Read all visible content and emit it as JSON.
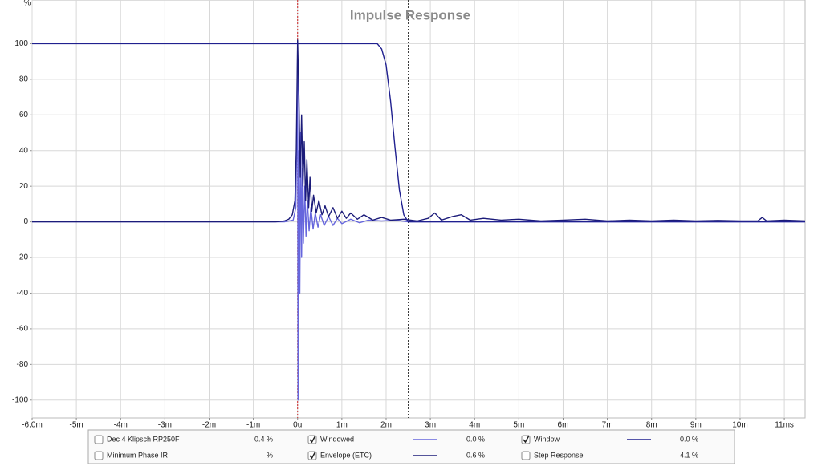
{
  "chart_data": {
    "type": "line",
    "title": "Impulse Response",
    "ylabel": "%",
    "xlim": [
      -6,
      11.47
    ],
    "ylim": [
      -110,
      120
    ],
    "xticks": [
      {
        "value": -6,
        "label": "-6.0m"
      },
      {
        "value": -5,
        "label": "-5m"
      },
      {
        "value": -4,
        "label": "-4m"
      },
      {
        "value": -3,
        "label": "-3m"
      },
      {
        "value": -2,
        "label": "-2m"
      },
      {
        "value": -1,
        "label": "-1m"
      },
      {
        "value": 0,
        "label": "0u"
      },
      {
        "value": 1,
        "label": "1m"
      },
      {
        "value": 2,
        "label": "2m"
      },
      {
        "value": 3,
        "label": "3m"
      },
      {
        "value": 4,
        "label": "4m"
      },
      {
        "value": 5,
        "label": "5m"
      },
      {
        "value": 6,
        "label": "6m"
      },
      {
        "value": 7,
        "label": "7m"
      },
      {
        "value": 8,
        "label": "8m"
      },
      {
        "value": 9,
        "label": "9m"
      },
      {
        "value": 10,
        "label": "10m"
      },
      {
        "value": 11,
        "label": "11ms"
      }
    ],
    "yticks": [
      -100,
      -80,
      -60,
      -40,
      -20,
      0,
      20,
      40,
      60,
      80,
      100
    ],
    "grid": true,
    "markers": [
      {
        "x": 0,
        "color": "#cc2222",
        "dash": "2,2"
      },
      {
        "x": 2.5,
        "color": "#333333",
        "dash": "2,2"
      }
    ],
    "series": [
      {
        "name": "Windowed",
        "color": "#6666dd",
        "readout": "0.0 %",
        "checked": true,
        "x": [
          -6,
          -0.3,
          -0.1,
          -0.04,
          -0.01,
          0,
          0.01,
          0.03,
          0.05,
          0.07,
          0.09,
          0.11,
          0.13,
          0.16,
          0.19,
          0.22,
          0.26,
          0.3,
          0.35,
          0.4,
          0.46,
          0.52,
          0.6,
          0.7,
          0.8,
          0.9,
          1.0,
          1.2,
          1.4,
          1.6,
          1.9,
          2.2,
          2.5,
          11.47
        ],
        "values": [
          0,
          0,
          1,
          8,
          60,
          100,
          -100,
          40,
          -40,
          50,
          -20,
          30,
          -12,
          20,
          -8,
          12,
          -5,
          8,
          -4,
          5,
          -3,
          4,
          -2,
          3,
          -2,
          2,
          -1,
          1.5,
          -0.5,
          1,
          0.5,
          1,
          0,
          0
        ]
      },
      {
        "name": "Envelope (ETC)",
        "color": "#1c1c7a",
        "readout": "0.6 %",
        "checked": true,
        "x": [
          -6,
          -0.5,
          -0.3,
          -0.2,
          -0.12,
          -0.06,
          -0.03,
          0,
          0.03,
          0.06,
          0.09,
          0.12,
          0.15,
          0.18,
          0.21,
          0.25,
          0.28,
          0.32,
          0.36,
          0.42,
          0.48,
          0.55,
          0.62,
          0.7,
          0.8,
          0.9,
          1.0,
          1.1,
          1.2,
          1.35,
          1.5,
          1.7,
          1.9,
          2.1,
          2.4,
          2.7,
          2.95,
          3.1,
          3.25,
          3.5,
          3.7,
          3.9,
          4.2,
          4.6,
          5.0,
          5.5,
          6.0,
          6.5,
          7.0,
          7.5,
          8.0,
          8.5,
          9.0,
          9.5,
          10.0,
          10.4,
          10.5,
          10.6,
          11.0,
          11.47
        ],
        "values": [
          0,
          0,
          0.5,
          1.5,
          4,
          12,
          40,
          102,
          70,
          25,
          60,
          20,
          45,
          12,
          35,
          8,
          25,
          6,
          15,
          5,
          12,
          4,
          9,
          3,
          8,
          2,
          6,
          2,
          5,
          1.5,
          4,
          1,
          2.5,
          1,
          1.5,
          0.5,
          2,
          5,
          1,
          3,
          4,
          1,
          2,
          1,
          1.5,
          0.5,
          1,
          1.5,
          0.5,
          1,
          0.5,
          1,
          0.5,
          0.8,
          0.5,
          0.5,
          2.5,
          0.5,
          1,
          0.5
        ]
      },
      {
        "name": "Window",
        "color": "#20208f",
        "readout": "0.0 %",
        "checked": true,
        "x": [
          -6,
          1.8,
          1.9,
          2.0,
          2.1,
          2.2,
          2.3,
          2.4,
          2.5,
          11.47
        ],
        "values": [
          100,
          100,
          97,
          88,
          68,
          42,
          18,
          4,
          0,
          0
        ]
      }
    ],
    "other_items": [
      {
        "name": "Dec 4 Klipsch RP250F",
        "readout": "0.4 %",
        "checked": false,
        "color": "#2a2aa0"
      },
      {
        "name": "Minimum Phase IR",
        "readout": "%",
        "checked": false,
        "color": "#999999"
      },
      {
        "name": "Step Response",
        "readout": "4.1 %",
        "checked": false,
        "color": "#2a2aa0"
      }
    ]
  }
}
